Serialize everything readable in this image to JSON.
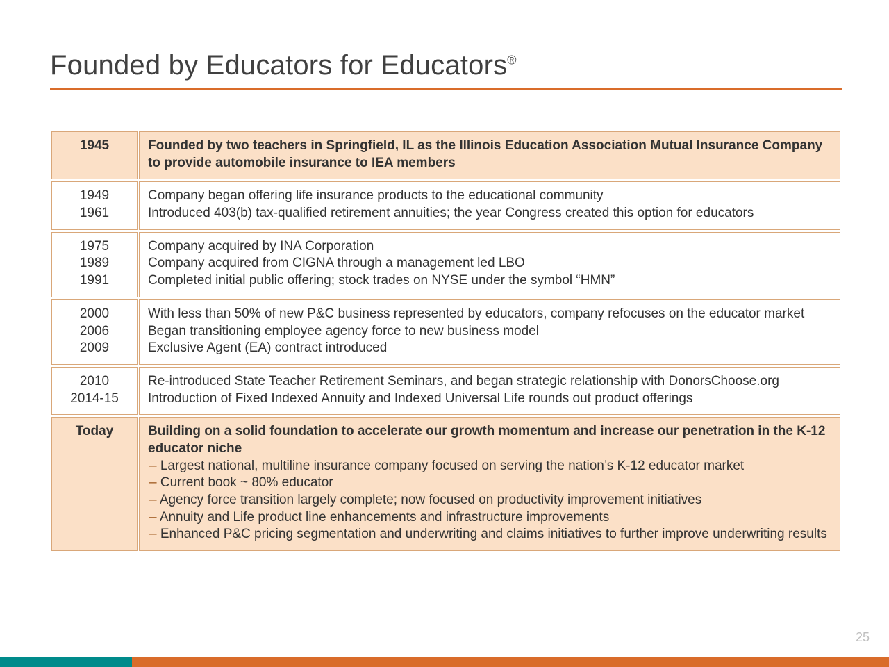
{
  "colors": {
    "accent_orange": "#d96c2a",
    "accent_teal": "#008b8b",
    "cell_border": "#d9a779",
    "highlight_bg": "#fbe0c7",
    "text": "#333333",
    "title_text": "#404040",
    "pagenum": "#bfbfbf",
    "dash": "#9f5a1f"
  },
  "title": "Founded by Educators for Educators",
  "title_sup": "®",
  "page_number": "25",
  "rows": [
    {
      "highlight": true,
      "years": [
        "1945"
      ],
      "descs": [
        "Founded by two teachers in Springfield, IL as the Illinois Education Association Mutual Insurance Company to provide automobile insurance to IEA members"
      ]
    },
    {
      "highlight": false,
      "years": [
        "1949",
        "1961"
      ],
      "descs": [
        "Company began offering life insurance products to the educational community",
        "Introduced 403(b) tax-qualified retirement annuities; the year Congress created this option for educators"
      ]
    },
    {
      "highlight": false,
      "years": [
        "1975",
        "1989",
        "1991"
      ],
      "descs": [
        "Company acquired by INA Corporation",
        "Company acquired from CIGNA through a management led LBO",
        "Completed initial public offering; stock trades on NYSE under the symbol “HMN”"
      ]
    },
    {
      "highlight": false,
      "years": [
        "2000",
        "2006",
        "2009"
      ],
      "descs": [
        "With less than 50% of new P&C business represented by educators, company refocuses on the educator market",
        "Began transitioning employee agency force to new business model",
        "Exclusive Agent (EA) contract introduced"
      ]
    },
    {
      "highlight": false,
      "years": [
        "2010",
        "2014-15"
      ],
      "descs": [
        "Re-introduced State Teacher Retirement Seminars, and began strategic relationship with DonorsChoose.org",
        "Introduction of Fixed Indexed Annuity and Indexed Universal Life rounds out product offerings"
      ]
    },
    {
      "highlight": true,
      "years": [
        "Today"
      ],
      "lead": "Building on a solid foundation to accelerate our growth momentum and increase our penetration in the K-12 educator niche",
      "bullets": [
        "Largest national, multiline insurance company focused on serving the nation’s K-12 educator market",
        "Current book ~ 80% educator",
        "Agency force transition largely complete; now focused on productivity improvement initiatives",
        "Annuity and Life product line enhancements and infrastructure improvements",
        "Enhanced P&C pricing segmentation and underwriting and claims initiatives to further improve underwriting results"
      ]
    }
  ]
}
